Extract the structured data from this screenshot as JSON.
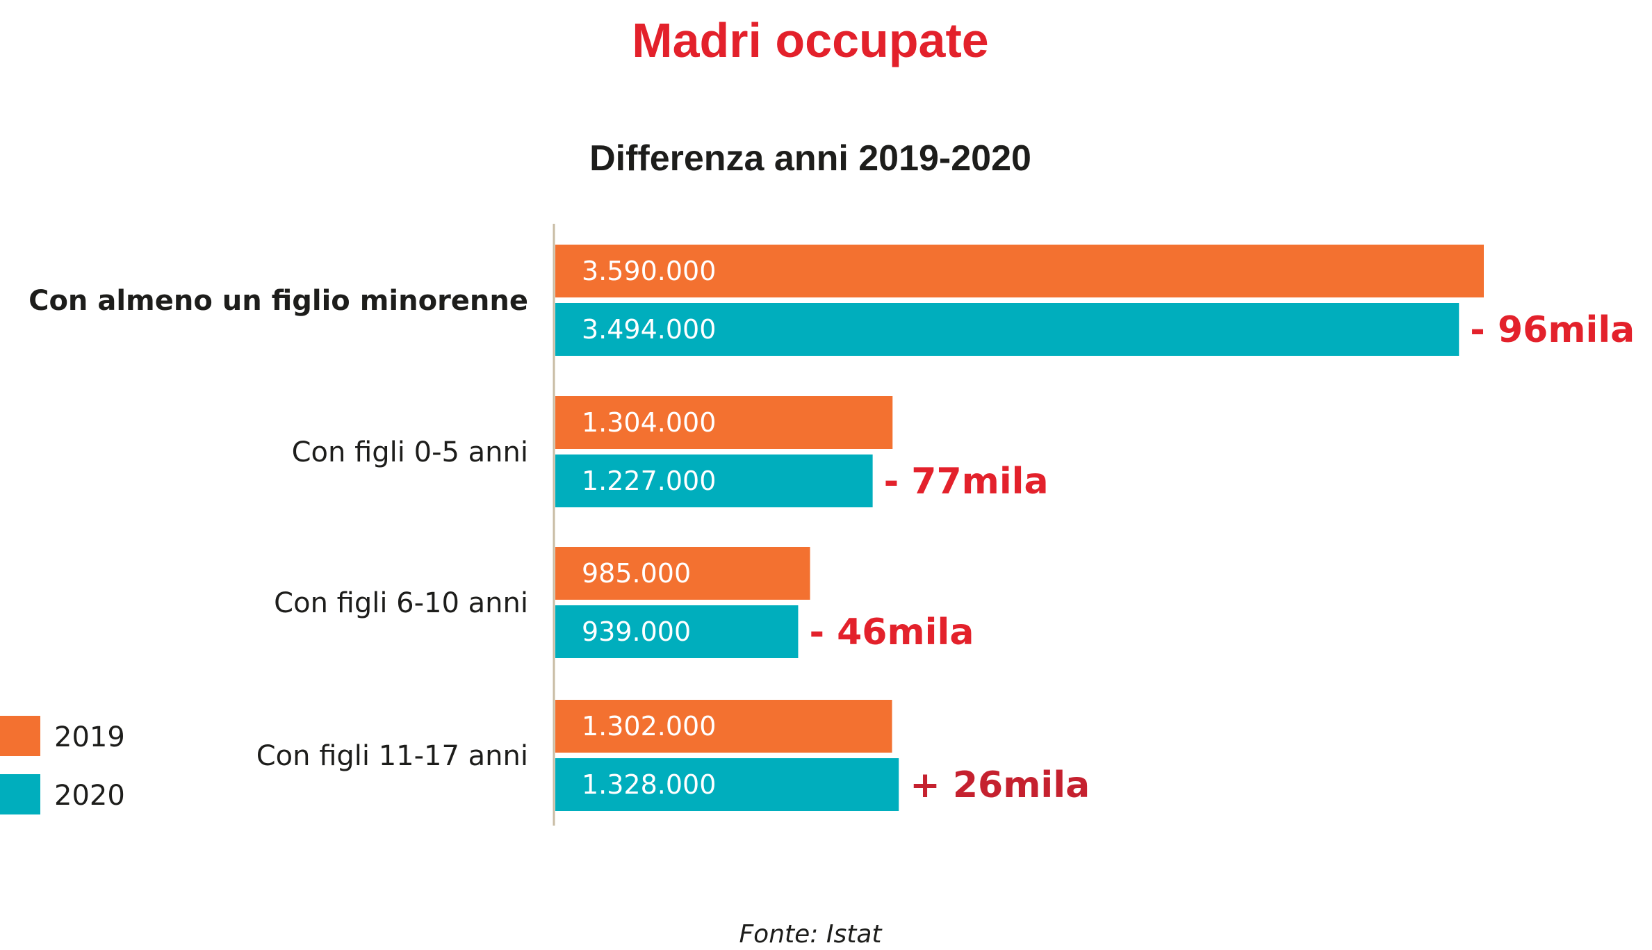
{
  "colors": {
    "c2019": "#f37130",
    "c2020": "#00aebd",
    "title": "#e3212b",
    "diff": "#e3212b",
    "diff_positive": "#c5212f",
    "axis": "#c8bca4",
    "text": "#1d1d1b"
  },
  "chart_data": {
    "type": "bar",
    "orientation": "horizontal",
    "title": "Madri occupate",
    "subtitle": "Differenza anni 2019-2020",
    "source": "Fonte: Istat",
    "legend_placement": "bottom-left",
    "grid": false,
    "xlim": [
      0,
      3700000
    ],
    "categories": [
      "Con almeno un figlio minorenne",
      "Con figli 0-5 anni",
      "Con figli 6-10 anni",
      "Con figli 11-17 anni"
    ],
    "series": [
      {
        "name": "2019",
        "values": [
          3590000,
          1304000,
          985000,
          1302000
        ],
        "labels": [
          "3.590.000",
          "1.304.000",
          "985.000",
          "1.302.000"
        ]
      },
      {
        "name": "2020",
        "values": [
          3494000,
          1227000,
          939000,
          1328000
        ],
        "labels": [
          "3.494.000",
          "1.227.000",
          "939.000",
          "1.328.000"
        ]
      }
    ],
    "differences": [
      "- 96mila",
      "- 77mila",
      "- 46mila",
      "+ 26mila"
    ]
  }
}
